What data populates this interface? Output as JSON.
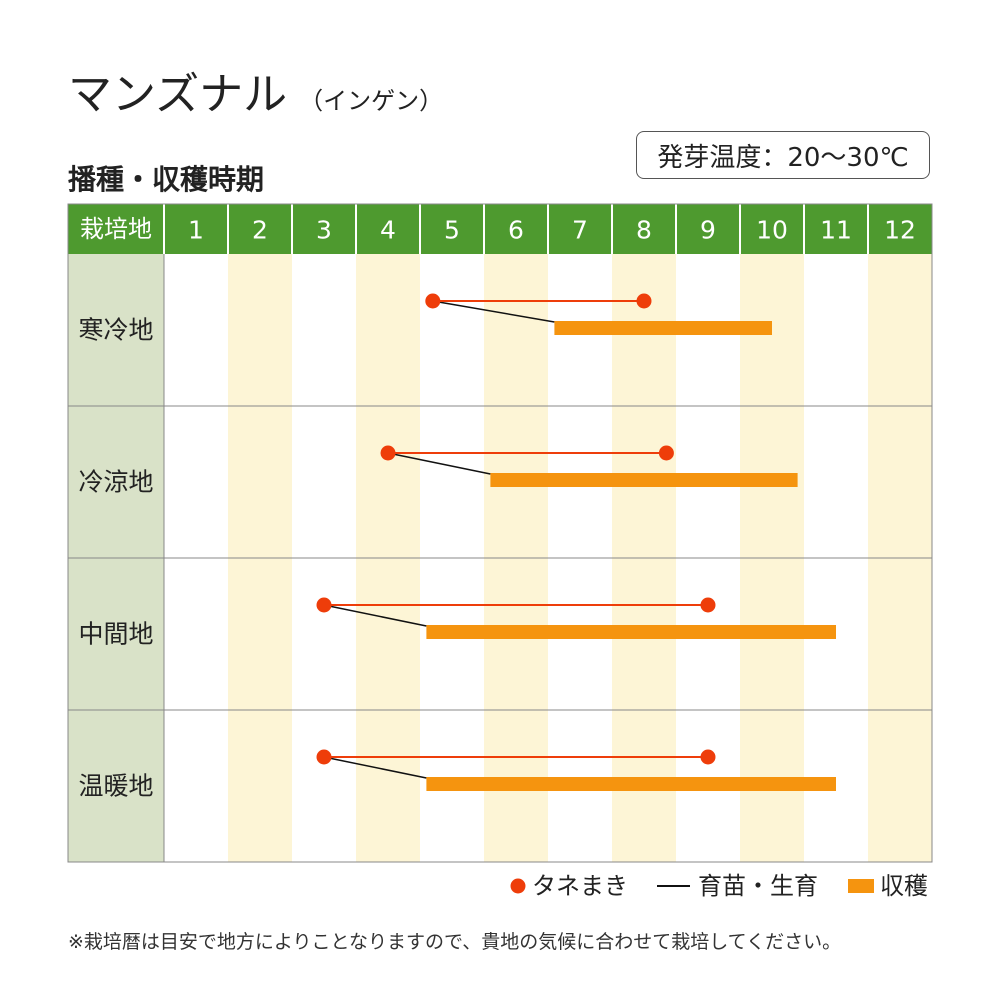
{
  "header": {
    "title": "マンズナル",
    "subtitle": "（インゲン）",
    "germination_temp": "発芽温度：20〜30℃"
  },
  "section_title": "播種・収穫時期",
  "chart_data": {
    "type": "gantt",
    "row_header_label": "栽培地",
    "months": [
      "1",
      "2",
      "3",
      "4",
      "5",
      "6",
      "7",
      "8",
      "9",
      "10",
      "11",
      "12"
    ],
    "rows": [
      {
        "region": "寒冷地",
        "sowing": [
          5.2,
          8.5
        ],
        "harvest": [
          7.1,
          10.5
        ]
      },
      {
        "region": "冷涼地",
        "sowing": [
          4.5,
          8.85
        ],
        "harvest": [
          6.1,
          10.9
        ]
      },
      {
        "region": "中間地",
        "sowing": [
          3.5,
          9.5
        ],
        "harvest": [
          5.1,
          11.5
        ]
      },
      {
        "region": "温暖地",
        "sowing": [
          3.5,
          9.5
        ],
        "harvest": [
          5.1,
          11.5
        ]
      }
    ],
    "legend": [
      {
        "key": "sowing",
        "label": "タネまき"
      },
      {
        "key": "growing",
        "label": "育苗・生育"
      },
      {
        "key": "harvest",
        "label": "収穫"
      }
    ],
    "colors": {
      "header_bg": "#4e9a2f",
      "header_text": "#ffffff",
      "row_label_bg": "#d9e2c8",
      "stripe": "#fdf5d6",
      "grid": "#888888",
      "sowing": "#ee3d0a",
      "harvest": "#f5940f",
      "growing": "#111111"
    }
  },
  "footnote": "※栽培暦は目安で地方によりことなりますので、貴地の気候に合わせて栽培してください。"
}
